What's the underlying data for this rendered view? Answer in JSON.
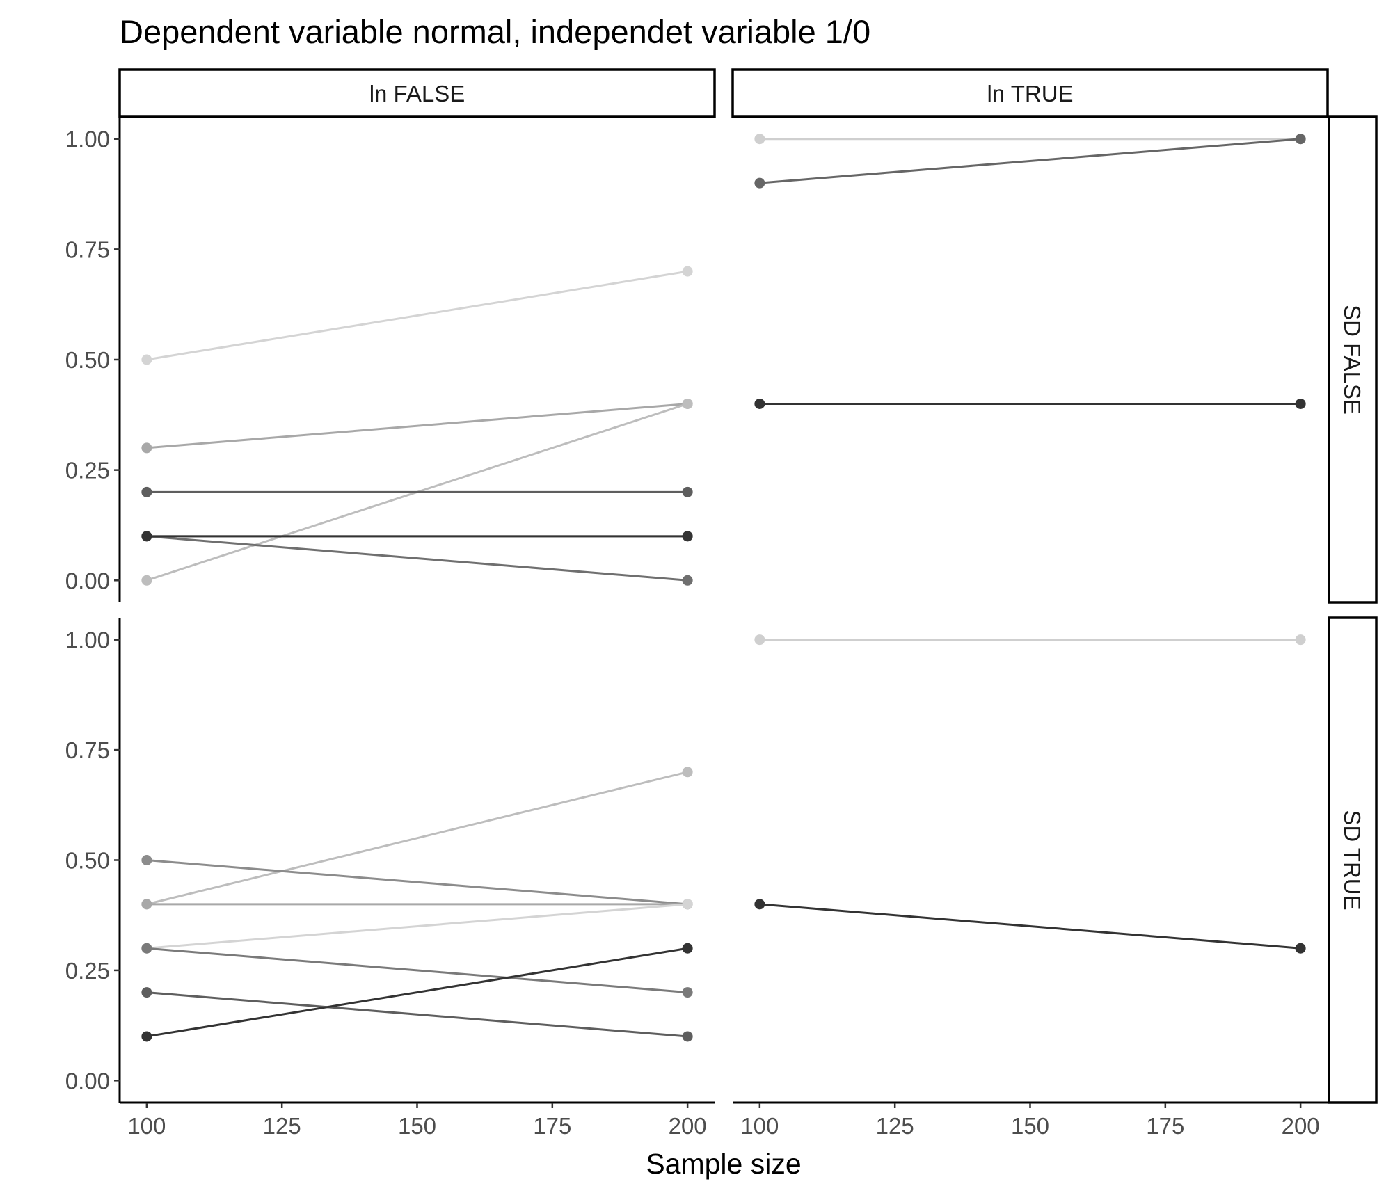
{
  "chart_data": {
    "type": "line",
    "title": "Dependent variable normal, independet variable 1/0",
    "xlabel": "Sample size",
    "ylabel": "",
    "xlim": [
      95,
      205
    ],
    "ylim": [
      -0.05,
      1.05
    ],
    "x_ticks": [
      100,
      125,
      150,
      175,
      200
    ],
    "x_tick_labels": [
      "100",
      "125",
      "150",
      "175",
      "200"
    ],
    "y_ticks": [
      0,
      0.25,
      0.5,
      0.75,
      1.0
    ],
    "y_tick_labels": [
      "0.00",
      "0.25",
      "0.50",
      "0.75",
      "1.00"
    ],
    "grid": false,
    "facets": {
      "columns": [
        "ln FALSE",
        "ln TRUE"
      ],
      "rows": [
        "SD FALSE",
        "SD TRUE"
      ]
    },
    "panels": [
      {
        "col": "ln FALSE",
        "row": "SD FALSE",
        "series": [
          {
            "x": [
              100,
              200
            ],
            "values": [
              0.5,
              0.7
            ],
            "color": "#d4d4d4"
          },
          {
            "x": [
              100,
              200
            ],
            "values": [
              0.3,
              0.4
            ],
            "color": "#a8a8a8"
          },
          {
            "x": [
              100,
              200
            ],
            "values": [
              0.0,
              0.4
            ],
            "color": "#bdbdbd"
          },
          {
            "x": [
              100,
              200
            ],
            "values": [
              0.2,
              0.2
            ],
            "color": "#5e5e5e"
          },
          {
            "x": [
              100,
              200
            ],
            "values": [
              0.1,
              0.1
            ],
            "color": "#9a9a9a"
          },
          {
            "x": [
              100,
              200
            ],
            "values": [
              0.1,
              0.0
            ],
            "color": "#6f6f6f"
          },
          {
            "x": [
              100,
              200
            ],
            "values": [
              0.1,
              0.1
            ],
            "color": "#333333"
          }
        ]
      },
      {
        "col": "ln TRUE",
        "row": "SD FALSE",
        "series": [
          {
            "x": [
              100,
              200
            ],
            "values": [
              1.0,
              1.0
            ],
            "color": "#cfcfcf"
          },
          {
            "x": [
              100,
              200
            ],
            "values": [
              0.9,
              1.0
            ],
            "color": "#666666"
          },
          {
            "x": [
              100,
              200
            ],
            "values": [
              0.4,
              0.4
            ],
            "color": "#333333"
          }
        ]
      },
      {
        "col": "ln FALSE",
        "row": "SD TRUE",
        "series": [
          {
            "x": [
              100,
              200
            ],
            "values": [
              0.4,
              0.7
            ],
            "color": "#bdbdbd"
          },
          {
            "x": [
              100,
              200
            ],
            "values": [
              0.5,
              0.4
            ],
            "color": "#8c8c8c"
          },
          {
            "x": [
              100,
              200
            ],
            "values": [
              0.4,
              0.4
            ],
            "color": "#a8a8a8"
          },
          {
            "x": [
              100,
              200
            ],
            "values": [
              0.3,
              0.4
            ],
            "color": "#d4d4d4"
          },
          {
            "x": [
              100,
              200
            ],
            "values": [
              0.3,
              0.2
            ],
            "color": "#7a7a7a"
          },
          {
            "x": [
              100,
              200
            ],
            "values": [
              0.2,
              0.1
            ],
            "color": "#5e5e5e"
          },
          {
            "x": [
              100,
              200
            ],
            "values": [
              0.1,
              0.3
            ],
            "color": "#333333"
          }
        ]
      },
      {
        "col": "ln TRUE",
        "row": "SD TRUE",
        "series": [
          {
            "x": [
              100,
              200
            ],
            "values": [
              1.0,
              1.0
            ],
            "color": "#cfcfcf"
          },
          {
            "x": [
              100,
              200
            ],
            "values": [
              0.4,
              0.3
            ],
            "color": "#333333"
          }
        ]
      }
    ]
  }
}
